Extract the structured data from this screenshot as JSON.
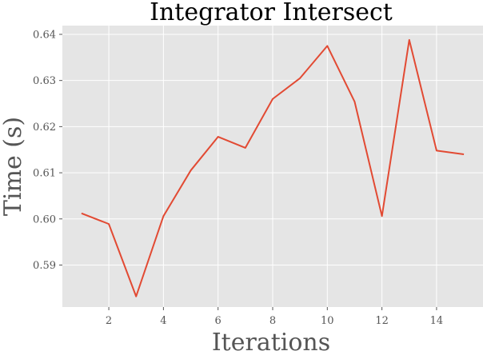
{
  "chart_data": {
    "type": "line",
    "title": "Integrator Intersect",
    "xlabel": "Iterations",
    "ylabel": "Time (s)",
    "xlim": [
      0.3,
      15.7
    ],
    "ylim": [
      0.5809,
      0.6419
    ],
    "xticks": [
      2,
      4,
      6,
      8,
      10,
      12,
      14
    ],
    "yticks": [
      0.59,
      0.6,
      0.61,
      0.62,
      0.63,
      0.64
    ],
    "ytick_labels": [
      "0.59",
      "0.60",
      "0.61",
      "0.62",
      "0.63",
      "0.64"
    ],
    "grid": true,
    "background": "#e5e5e5",
    "series": [
      {
        "color": "#e24a33",
        "x": [
          1,
          2,
          3,
          4,
          5,
          6,
          7,
          8,
          9,
          10,
          11,
          12,
          13,
          14,
          15
        ],
        "y": [
          0.6012,
          0.5989,
          0.5832,
          0.6006,
          0.6105,
          0.6178,
          0.6154,
          0.626,
          0.6305,
          0.6375,
          0.6254,
          0.6006,
          0.6388,
          0.6148,
          0.614
        ]
      }
    ]
  }
}
